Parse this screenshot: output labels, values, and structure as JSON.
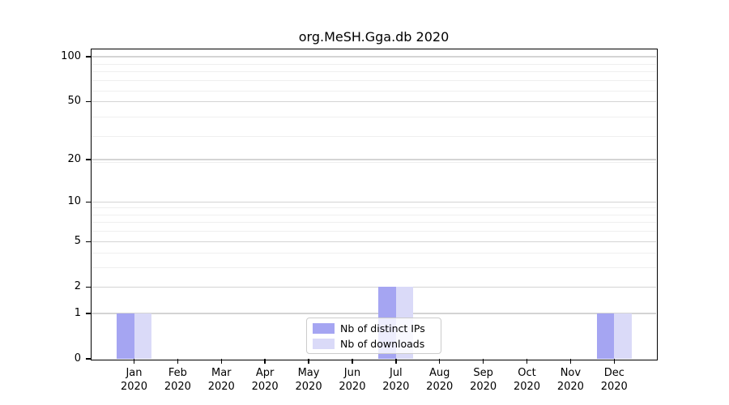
{
  "figure_title": "org.MeSH.Gga.db 2020",
  "legend": {
    "items": [
      {
        "label": "Nb of distinct IPs",
        "color": "#a5a5f2"
      },
      {
        "label": "Nb of downloads",
        "color": "#dadaf8"
      }
    ]
  },
  "chart_data": {
    "type": "bar",
    "title": "org.MeSH.Gga.db 2020",
    "categories": [
      {
        "month": "Jan",
        "year": "2020"
      },
      {
        "month": "Feb",
        "year": "2020"
      },
      {
        "month": "Mar",
        "year": "2020"
      },
      {
        "month": "Apr",
        "year": "2020"
      },
      {
        "month": "May",
        "year": "2020"
      },
      {
        "month": "Jun",
        "year": "2020"
      },
      {
        "month": "Jul",
        "year": "2020"
      },
      {
        "month": "Aug",
        "year": "2020"
      },
      {
        "month": "Sep",
        "year": "2020"
      },
      {
        "month": "Oct",
        "year": "2020"
      },
      {
        "month": "Nov",
        "year": "2020"
      },
      {
        "month": "Dec",
        "year": "2020"
      }
    ],
    "series": [
      {
        "name": "Nb of distinct IPs",
        "color": "#a5a5f2",
        "values": [
          1,
          0,
          0,
          0,
          0,
          0,
          2,
          0,
          0,
          0,
          0,
          1
        ]
      },
      {
        "name": "Nb of downloads",
        "color": "#dadaf8",
        "values": [
          1,
          0,
          0,
          0,
          0,
          0,
          2,
          0,
          0,
          0,
          0,
          1
        ]
      }
    ],
    "xlabel": "",
    "ylabel": "",
    "yscale": "log1p",
    "ylim": [
      0,
      112
    ],
    "yticks": [
      0,
      1,
      2,
      5,
      10,
      20,
      50,
      100
    ],
    "minor_yticks": [
      3,
      4,
      6,
      7,
      8,
      9,
      19,
      29,
      39,
      59,
      69,
      79,
      89
    ],
    "grid": "horizontal-only",
    "legend_position": "inside-bottom-center"
  }
}
